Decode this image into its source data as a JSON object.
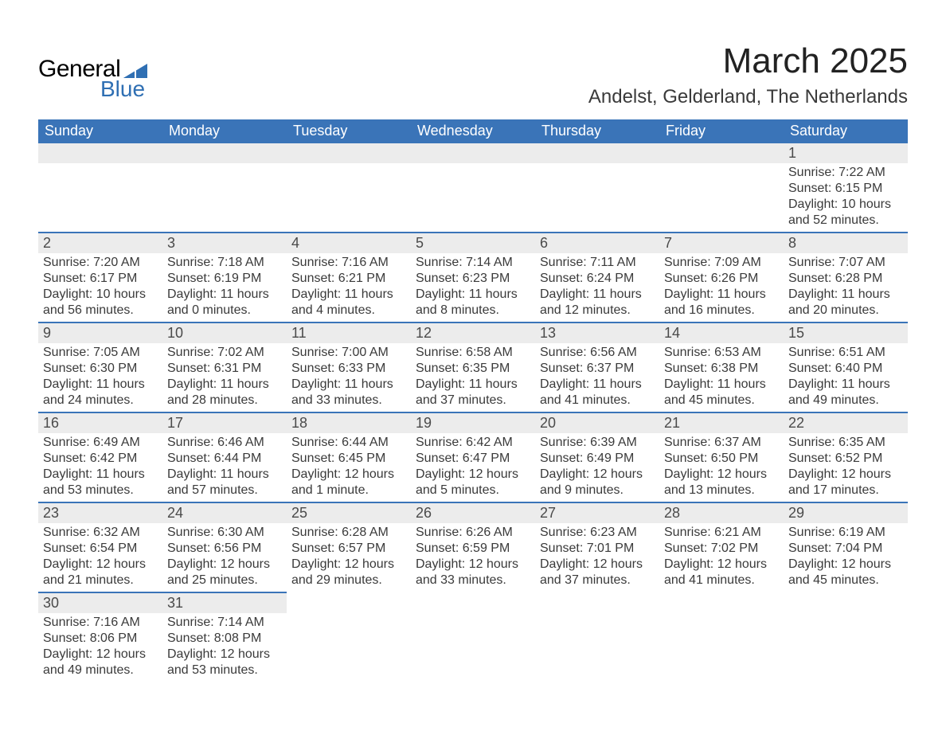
{
  "brand": {
    "part1": "General",
    "part2": "Blue",
    "triangle_color": "#2f6fb3"
  },
  "title": "March 2025",
  "location": "Andelst, Gelderland, The Netherlands",
  "colors": {
    "header_bg": "#3a74b8",
    "header_text": "#ffffff",
    "daynum_bg": "#ececec",
    "row_border": "#3a74b8",
    "body_text": "#3a3a3a",
    "title_text": "#222222"
  },
  "typography": {
    "title_fontsize_pt": 33,
    "location_fontsize_pt": 18,
    "header_fontsize_pt": 13,
    "daynum_fontsize_pt": 13,
    "detail_fontsize_pt": 12
  },
  "day_headers": [
    "Sunday",
    "Monday",
    "Tuesday",
    "Wednesday",
    "Thursday",
    "Friday",
    "Saturday"
  ],
  "weeks": [
    [
      null,
      null,
      null,
      null,
      null,
      null,
      {
        "n": "1",
        "sunrise": "Sunrise: 7:22 AM",
        "sunset": "Sunset: 6:15 PM",
        "daylight": "Daylight: 10 hours and 52 minutes."
      }
    ],
    [
      {
        "n": "2",
        "sunrise": "Sunrise: 7:20 AM",
        "sunset": "Sunset: 6:17 PM",
        "daylight": "Daylight: 10 hours and 56 minutes."
      },
      {
        "n": "3",
        "sunrise": "Sunrise: 7:18 AM",
        "sunset": "Sunset: 6:19 PM",
        "daylight": "Daylight: 11 hours and 0 minutes."
      },
      {
        "n": "4",
        "sunrise": "Sunrise: 7:16 AM",
        "sunset": "Sunset: 6:21 PM",
        "daylight": "Daylight: 11 hours and 4 minutes."
      },
      {
        "n": "5",
        "sunrise": "Sunrise: 7:14 AM",
        "sunset": "Sunset: 6:23 PM",
        "daylight": "Daylight: 11 hours and 8 minutes."
      },
      {
        "n": "6",
        "sunrise": "Sunrise: 7:11 AM",
        "sunset": "Sunset: 6:24 PM",
        "daylight": "Daylight: 11 hours and 12 minutes."
      },
      {
        "n": "7",
        "sunrise": "Sunrise: 7:09 AM",
        "sunset": "Sunset: 6:26 PM",
        "daylight": "Daylight: 11 hours and 16 minutes."
      },
      {
        "n": "8",
        "sunrise": "Sunrise: 7:07 AM",
        "sunset": "Sunset: 6:28 PM",
        "daylight": "Daylight: 11 hours and 20 minutes."
      }
    ],
    [
      {
        "n": "9",
        "sunrise": "Sunrise: 7:05 AM",
        "sunset": "Sunset: 6:30 PM",
        "daylight": "Daylight: 11 hours and 24 minutes."
      },
      {
        "n": "10",
        "sunrise": "Sunrise: 7:02 AM",
        "sunset": "Sunset: 6:31 PM",
        "daylight": "Daylight: 11 hours and 28 minutes."
      },
      {
        "n": "11",
        "sunrise": "Sunrise: 7:00 AM",
        "sunset": "Sunset: 6:33 PM",
        "daylight": "Daylight: 11 hours and 33 minutes."
      },
      {
        "n": "12",
        "sunrise": "Sunrise: 6:58 AM",
        "sunset": "Sunset: 6:35 PM",
        "daylight": "Daylight: 11 hours and 37 minutes."
      },
      {
        "n": "13",
        "sunrise": "Sunrise: 6:56 AM",
        "sunset": "Sunset: 6:37 PM",
        "daylight": "Daylight: 11 hours and 41 minutes."
      },
      {
        "n": "14",
        "sunrise": "Sunrise: 6:53 AM",
        "sunset": "Sunset: 6:38 PM",
        "daylight": "Daylight: 11 hours and 45 minutes."
      },
      {
        "n": "15",
        "sunrise": "Sunrise: 6:51 AM",
        "sunset": "Sunset: 6:40 PM",
        "daylight": "Daylight: 11 hours and 49 minutes."
      }
    ],
    [
      {
        "n": "16",
        "sunrise": "Sunrise: 6:49 AM",
        "sunset": "Sunset: 6:42 PM",
        "daylight": "Daylight: 11 hours and 53 minutes."
      },
      {
        "n": "17",
        "sunrise": "Sunrise: 6:46 AM",
        "sunset": "Sunset: 6:44 PM",
        "daylight": "Daylight: 11 hours and 57 minutes."
      },
      {
        "n": "18",
        "sunrise": "Sunrise: 6:44 AM",
        "sunset": "Sunset: 6:45 PM",
        "daylight": "Daylight: 12 hours and 1 minute."
      },
      {
        "n": "19",
        "sunrise": "Sunrise: 6:42 AM",
        "sunset": "Sunset: 6:47 PM",
        "daylight": "Daylight: 12 hours and 5 minutes."
      },
      {
        "n": "20",
        "sunrise": "Sunrise: 6:39 AM",
        "sunset": "Sunset: 6:49 PM",
        "daylight": "Daylight: 12 hours and 9 minutes."
      },
      {
        "n": "21",
        "sunrise": "Sunrise: 6:37 AM",
        "sunset": "Sunset: 6:50 PM",
        "daylight": "Daylight: 12 hours and 13 minutes."
      },
      {
        "n": "22",
        "sunrise": "Sunrise: 6:35 AM",
        "sunset": "Sunset: 6:52 PM",
        "daylight": "Daylight: 12 hours and 17 minutes."
      }
    ],
    [
      {
        "n": "23",
        "sunrise": "Sunrise: 6:32 AM",
        "sunset": "Sunset: 6:54 PM",
        "daylight": "Daylight: 12 hours and 21 minutes."
      },
      {
        "n": "24",
        "sunrise": "Sunrise: 6:30 AM",
        "sunset": "Sunset: 6:56 PM",
        "daylight": "Daylight: 12 hours and 25 minutes."
      },
      {
        "n": "25",
        "sunrise": "Sunrise: 6:28 AM",
        "sunset": "Sunset: 6:57 PM",
        "daylight": "Daylight: 12 hours and 29 minutes."
      },
      {
        "n": "26",
        "sunrise": "Sunrise: 6:26 AM",
        "sunset": "Sunset: 6:59 PM",
        "daylight": "Daylight: 12 hours and 33 minutes."
      },
      {
        "n": "27",
        "sunrise": "Sunrise: 6:23 AM",
        "sunset": "Sunset: 7:01 PM",
        "daylight": "Daylight: 12 hours and 37 minutes."
      },
      {
        "n": "28",
        "sunrise": "Sunrise: 6:21 AM",
        "sunset": "Sunset: 7:02 PM",
        "daylight": "Daylight: 12 hours and 41 minutes."
      },
      {
        "n": "29",
        "sunrise": "Sunrise: 6:19 AM",
        "sunset": "Sunset: 7:04 PM",
        "daylight": "Daylight: 12 hours and 45 minutes."
      }
    ],
    [
      {
        "n": "30",
        "sunrise": "Sunrise: 7:16 AM",
        "sunset": "Sunset: 8:06 PM",
        "daylight": "Daylight: 12 hours and 49 minutes."
      },
      {
        "n": "31",
        "sunrise": "Sunrise: 7:14 AM",
        "sunset": "Sunset: 8:08 PM",
        "daylight": "Daylight: 12 hours and 53 minutes."
      },
      null,
      null,
      null,
      null,
      null
    ]
  ]
}
